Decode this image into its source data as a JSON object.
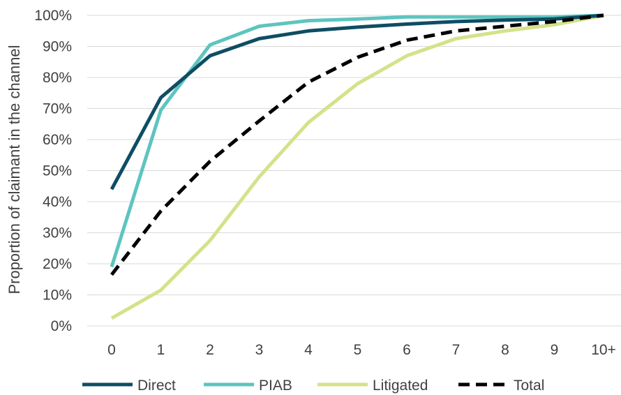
{
  "chart_data": {
    "type": "line",
    "title": "",
    "xlabel": "",
    "ylabel": "Proportion  of claimant in the channel",
    "categories": [
      "0",
      "1",
      "2",
      "3",
      "4",
      "5",
      "6",
      "7",
      "8",
      "9",
      "10+"
    ],
    "y_ticks": [
      "0%",
      "10%",
      "20%",
      "30%",
      "40%",
      "50%",
      "60%",
      "70%",
      "80%",
      "90%",
      "100%"
    ],
    "ylim": [
      0,
      100
    ],
    "grid": "horizontal",
    "legend_position": "bottom",
    "series": [
      {
        "name": "Direct",
        "color": "#0e4d64",
        "dash": "solid",
        "values": [
          44,
          73.5,
          87,
          92.5,
          95,
          96.2,
          97.2,
          98,
          98.5,
          98.8,
          100
        ]
      },
      {
        "name": "PIAB",
        "color": "#5ec4bf",
        "dash": "solid",
        "values": [
          19,
          69.5,
          90.5,
          96.5,
          98.3,
          98.8,
          99.5,
          99.5,
          99.5,
          99.5,
          100
        ]
      },
      {
        "name": "Litigated",
        "color": "#d4e289",
        "dash": "solid",
        "values": [
          2.5,
          11.5,
          27.5,
          48,
          65.5,
          78,
          87,
          92.5,
          95,
          97,
          100
        ]
      },
      {
        "name": "Total",
        "color": "#000000",
        "dash": "dashed",
        "values": [
          16.5,
          37,
          53,
          66,
          78.5,
          86.5,
          92,
          95,
          96.5,
          98,
          100
        ]
      }
    ]
  }
}
